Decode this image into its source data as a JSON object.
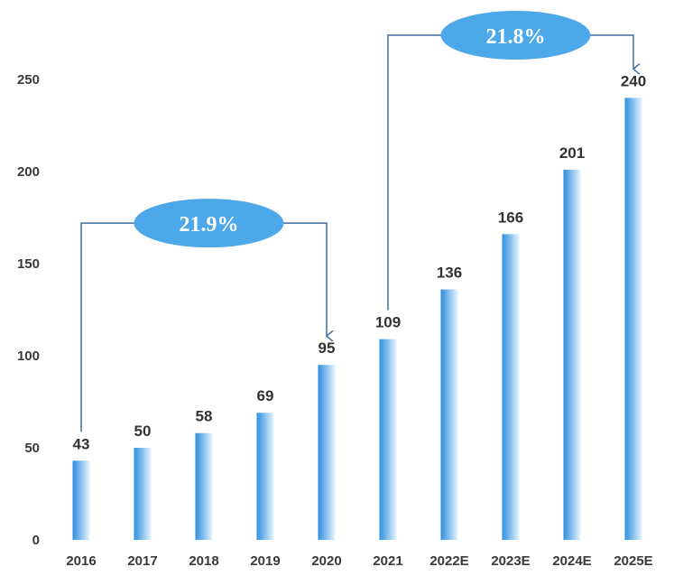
{
  "chart_data": {
    "type": "bar",
    "categories": [
      "2016",
      "2017",
      "2018",
      "2019",
      "2020",
      "2021",
      "2022E",
      "2023E",
      "2024E",
      "2025E"
    ],
    "values": [
      43,
      50,
      58,
      69,
      95,
      109,
      136,
      166,
      201,
      240
    ],
    "data_labels": [
      "43",
      "50",
      "58",
      "69",
      "95",
      "109",
      "136",
      "166",
      "201",
      "240"
    ],
    "ylim": [
      0,
      250
    ],
    "yticks": [
      0,
      50,
      100,
      150,
      200,
      250
    ],
    "ytick_labels": [
      "0",
      "50",
      "100",
      "150",
      "200",
      "250"
    ],
    "title": "",
    "xlabel": "",
    "ylabel": "",
    "grid": false,
    "bar_color_start": "#2e8fe0",
    "bar_color_end": "#e6f5fd",
    "annotations": [
      {
        "label": "21.9%",
        "from_category": "2016",
        "to_category": "2020",
        "level": 172
      },
      {
        "label": "21.8%",
        "from_category": "2021",
        "to_category": "2025E",
        "level": 274
      }
    ],
    "annotation_bubble_color": "#4da8ea",
    "annotation_line_color": "#3f6fa0"
  }
}
